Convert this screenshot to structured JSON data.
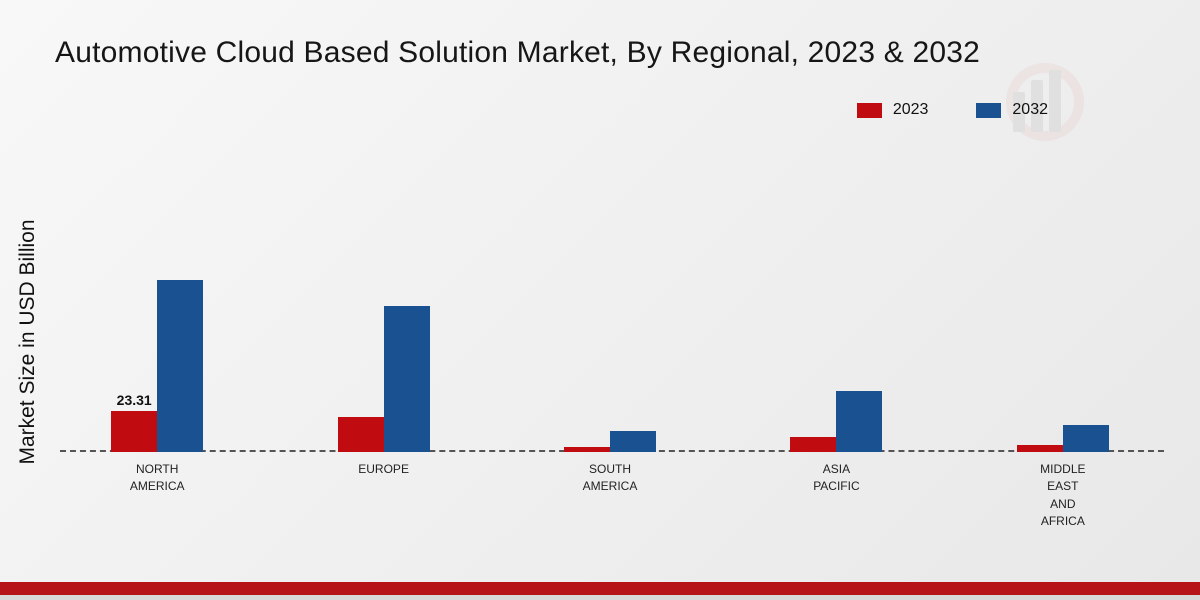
{
  "page": {
    "title": "Automotive Cloud Based Solution Market, By Regional, 2023 & 2032",
    "ylabel": "Market Size in USD Billion"
  },
  "legend": {
    "position": "top-right",
    "items": [
      {
        "label": "2023",
        "color": "#c00b10"
      },
      {
        "label": "2032",
        "color": "#1a5190"
      }
    ]
  },
  "chart_data": {
    "type": "bar",
    "title": "Automotive Cloud Based Solution Market, By Regional, 2023 & 2032",
    "ylabel": "Market Size in USD Billion",
    "categories": [
      "NORTH AMERICA",
      "EUROPE",
      "SOUTH AMERICA",
      "ASIA PACIFIC",
      "MIDDLE EAST AND AFRICA"
    ],
    "series": [
      {
        "name": "2023",
        "color": "#c00b10",
        "values": [
          23.31,
          19.9,
          2.8,
          8.5,
          4.0
        ]
      },
      {
        "name": "2032",
        "color": "#1a5190",
        "values": [
          97.8,
          83.0,
          11.9,
          34.7,
          15.4
        ]
      }
    ],
    "data_labels": [
      {
        "series": "2023",
        "category_index": 0,
        "text": "23.31"
      }
    ],
    "ylim": [
      0,
      100
    ],
    "grid": false,
    "baseline_style": "dashed",
    "legend_position": "top-right"
  },
  "footer": {
    "band_color": "#b51318"
  }
}
